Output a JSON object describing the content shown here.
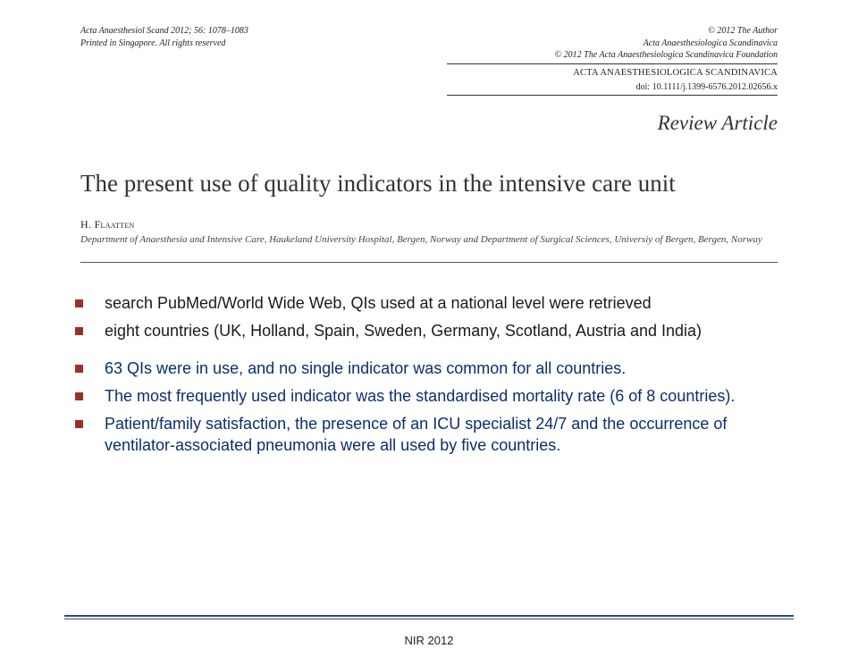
{
  "header": {
    "left_line1": "Acta Anaesthesiol Scand 2012; 56: 1078–1083",
    "left_line2": "Printed in Singapore. All rights reserved",
    "right_line1": "© 2012 The Author",
    "right_line2": "Acta Anaesthesiologica Scandinavica",
    "right_line3": "© 2012 The Acta Anaesthesiologica Scandinavica Foundation",
    "journal": "ACTA ANAESTHESIOLOGICA SCANDINAVICA",
    "doi": "doi: 10.1111/j.1399-6576.2012.02656.x",
    "section_label": "Review Article"
  },
  "title": "The present use of quality indicators in the intensive care unit",
  "author": {
    "name": "H. Flaatten",
    "affiliation": "Department of Anaesthesia and Intensive Care, Haukeland University Hospital, Bergen, Norway and Department of Surgical Sciences, Universiy of Bergen, Bergen, Norway"
  },
  "bullets": {
    "items": [
      {
        "text": "search PubMed/World Wide Web, QIs used at a national level were retrieved",
        "color": "black"
      },
      {
        "text": "eight countries (UK, Holland, Spain, Sweden, Germany, Scotland, Austria and India)",
        "color": "black"
      },
      {
        "text": "63 QIs were in use, and no single indicator was common for all countries.",
        "color": "blue"
      },
      {
        "text": "The most frequently used indicator was the standardised mortality rate (6 of 8 countries).",
        "color": "blue"
      },
      {
        "text": "Patient/family satisfaction, the presence of an ICU specialist 24/7 and the occurrence of ventilator-associated pneumonia were all used by five countries.",
        "color": "blue"
      }
    ],
    "marker_color": "#9b2f2a",
    "blue_text_color": "#0b2e6f"
  },
  "footer": {
    "label": "NIR 2012",
    "rule_color": "#2f4a7a"
  }
}
